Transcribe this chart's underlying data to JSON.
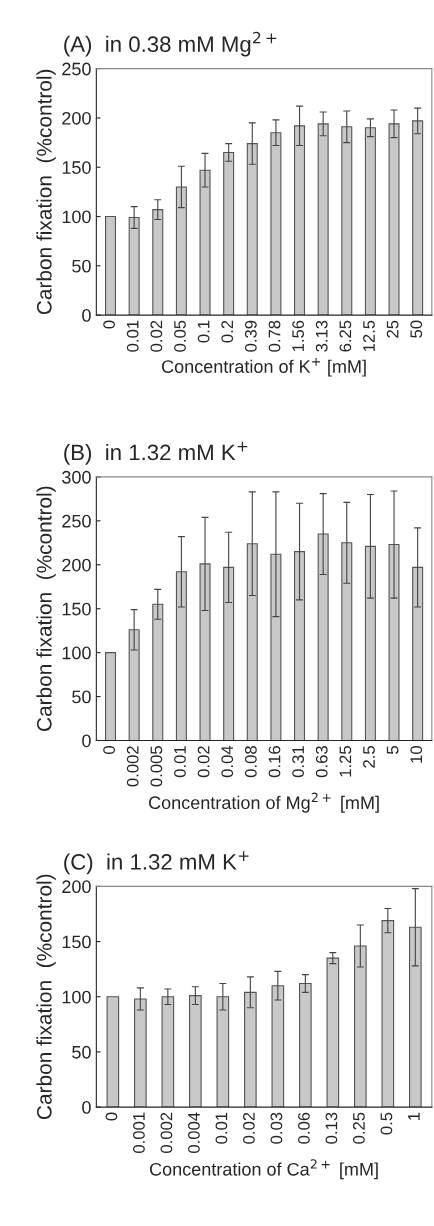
{
  "chart_data": [
    {
      "type": "bar",
      "title": "(A)  in 0.38 mM Mg$^{2+}$",
      "xlabel": "Concentration of K$^{+}$ [mM]",
      "ylabel": "Carbon fixation  (%control)",
      "categories": [
        "0",
        "0.01",
        "0.02",
        "0.05",
        "0.1",
        "0.2",
        "0.39",
        "0.78",
        "1.56",
        "3.13",
        "6.25",
        "12.5",
        "25",
        "50"
      ],
      "values": [
        100,
        99,
        107,
        130,
        147,
        165,
        174,
        185,
        192,
        194,
        191,
        190,
        194,
        197
      ],
      "errors": [
        null,
        11,
        10,
        21,
        17,
        9,
        21,
        13,
        20,
        12,
        16,
        9,
        14,
        13
      ],
      "color": "#c8c8c8",
      "ylim": [
        0,
        250
      ],
      "yticks": [
        0,
        50,
        100,
        150,
        200,
        250
      ],
      "grid": false
    },
    {
      "type": "bar",
      "title": "(B)  in 1.32 mM K$^{+}$",
      "xlabel": "Concentration of Mg$^{2+}$ [mM]",
      "ylabel": "Carbon fixation  (%control)",
      "categories": [
        "0",
        "0.002",
        "0.005",
        "0.01",
        "0.02",
        "0.04",
        "0.08",
        "0.16",
        "0.31",
        "0.63",
        "1.25",
        "2.5",
        "5",
        "10"
      ],
      "values": [
        100,
        126,
        155,
        192,
        201,
        197,
        224,
        212,
        215,
        235,
        225,
        221,
        223,
        197
      ],
      "errors": [
        null,
        23,
        17,
        40,
        53,
        40,
        59,
        71,
        55,
        46,
        46,
        59,
        61,
        45
      ],
      "color": "#c8c8c8",
      "ylim": [
        0,
        300
      ],
      "yticks": [
        0,
        50,
        100,
        150,
        200,
        250,
        300
      ],
      "grid": false
    },
    {
      "type": "bar",
      "title": "(C)  in 1.32 mM K$^{+}$",
      "xlabel": "Concentration of Ca$^{2+}$ [mM]",
      "ylabel": "Carbon fixation  (%control)",
      "categories": [
        "0",
        "0.001",
        "0.002",
        "0.004",
        "0.01",
        "0.02",
        "0.03",
        "0.06",
        "0.13",
        "0.25",
        "0.5",
        "1"
      ],
      "values": [
        100,
        98,
        100,
        101,
        100,
        104,
        110,
        112,
        135,
        146,
        169,
        163
      ],
      "errors": [
        null,
        10,
        7,
        8,
        12,
        14,
        13,
        8,
        5,
        19,
        11,
        35
      ],
      "color": "#c8c8c8",
      "ylim": [
        0,
        200
      ],
      "yticks": [
        0,
        50,
        100,
        150,
        200
      ],
      "grid": false
    }
  ]
}
